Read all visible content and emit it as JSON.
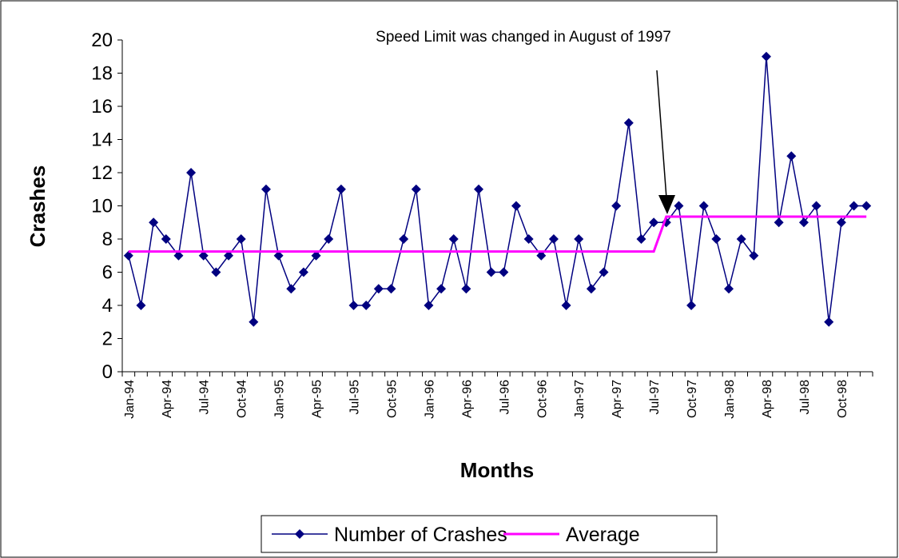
{
  "chart_data": {
    "type": "line",
    "annotation": "Speed Limit was changed in August of 1997",
    "x_label": "Months",
    "y_label": "Crashes",
    "categories": [
      "Jan-94",
      null,
      null,
      "Apr-94",
      null,
      null,
      "Jul-94",
      null,
      null,
      "Oct-94",
      null,
      null,
      "Jan-95",
      null,
      null,
      "Apr-95",
      null,
      null,
      "Jul-95",
      null,
      null,
      "Oct-95",
      null,
      null,
      "Jan-96",
      null,
      null,
      "Apr-96",
      null,
      null,
      "Jul-96",
      null,
      null,
      "Oct-96",
      null,
      null,
      "Jan-97",
      null,
      null,
      "Apr-97",
      null,
      null,
      "Jul-97",
      null,
      null,
      "Oct-97",
      null,
      null,
      "Jan-98",
      null,
      null,
      "Apr-98",
      null,
      null,
      "Jul-98",
      null,
      null,
      "Oct-98",
      null,
      null
    ],
    "series": [
      {
        "name": "Number of Crashes",
        "color": "#000080",
        "marker": "diamond",
        "values": [
          7,
          4,
          9,
          8,
          7,
          12,
          7,
          6,
          7,
          8,
          3,
          11,
          7,
          5,
          6,
          7,
          8,
          11,
          4,
          4,
          5,
          5,
          8,
          11,
          4,
          5,
          8,
          5,
          11,
          6,
          6,
          10,
          8,
          7,
          8,
          4,
          8,
          5,
          6,
          10,
          15,
          8,
          9,
          9,
          10,
          4,
          10,
          8,
          5,
          8,
          7,
          19,
          9,
          13,
          9,
          10,
          3,
          9,
          10,
          10
        ]
      },
      {
        "name": "Average",
        "color": "#ff00ff",
        "values": [
          7.25,
          7.25,
          7.25,
          7.25,
          7.25,
          7.25,
          7.25,
          7.25,
          7.25,
          7.25,
          7.25,
          7.25,
          7.25,
          7.25,
          7.25,
          7.25,
          7.25,
          7.25,
          7.25,
          7.25,
          7.25,
          7.25,
          7.25,
          7.25,
          7.25,
          7.25,
          7.25,
          7.25,
          7.25,
          7.25,
          7.25,
          7.25,
          7.25,
          7.25,
          7.25,
          7.25,
          7.25,
          7.25,
          7.25,
          7.25,
          7.25,
          7.25,
          7.25,
          9.35,
          9.35,
          9.35,
          9.35,
          9.35,
          9.35,
          9.35,
          9.35,
          9.35,
          9.35,
          9.35,
          9.35,
          9.35,
          9.35,
          9.35,
          9.35,
          9.35
        ]
      }
    ],
    "ylim": [
      0,
      20
    ],
    "yticks": [
      0,
      2,
      4,
      6,
      8,
      10,
      12,
      14,
      16,
      18,
      20
    ],
    "grid": false,
    "legend": "bottom"
  }
}
